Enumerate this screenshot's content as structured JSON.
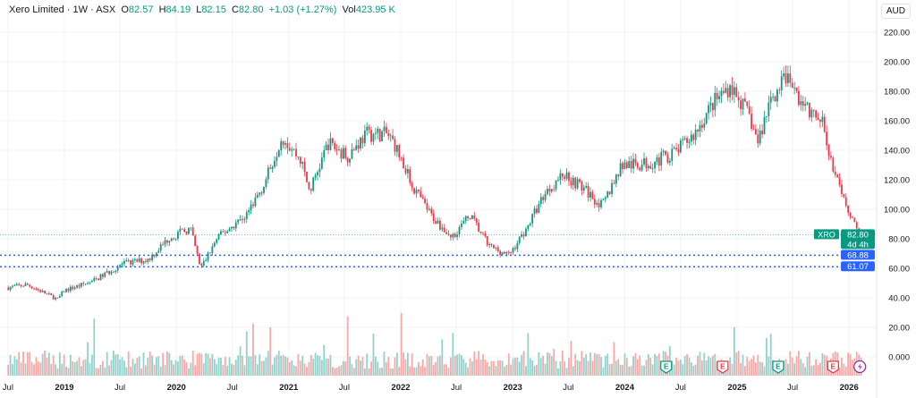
{
  "header": {
    "symbol": "Xero Limited",
    "interval": "1W",
    "exchange": "ASX",
    "open_label": "O",
    "open": "82.57",
    "high_label": "H",
    "high": "84.19",
    "low_label": "L",
    "low": "82.15",
    "close_label": "C",
    "close": "82.80",
    "change": "+1.03 (+1.27%)",
    "vol_label": "Vol",
    "volume": "423.95 K",
    "currency": "AUD"
  },
  "chart_data": {
    "type": "candlestick",
    "ylim": [
      0,
      220
    ],
    "y_ticks": [
      "0.000",
      "20.00",
      "40.00",
      "60.00",
      "80.00",
      "100.00",
      "120.00",
      "140.00",
      "160.00",
      "180.00",
      "200.00",
      "220.00"
    ],
    "x_ticks": [
      {
        "label": "Jul",
        "date": "2018-07-01",
        "bold": false
      },
      {
        "label": "2019",
        "date": "2019-01-01",
        "bold": true
      },
      {
        "label": "Jul",
        "date": "2019-07-01",
        "bold": false
      },
      {
        "label": "2020",
        "date": "2020-01-01",
        "bold": true
      },
      {
        "label": "Jul",
        "date": "2020-07-01",
        "bold": false
      },
      {
        "label": "2021",
        "date": "2021-01-01",
        "bold": true
      },
      {
        "label": "Jul",
        "date": "2021-07-01",
        "bold": false
      },
      {
        "label": "2022",
        "date": "2022-01-01",
        "bold": true
      },
      {
        "label": "Jul",
        "date": "2022-07-01",
        "bold": false
      },
      {
        "label": "2023",
        "date": "2023-01-01",
        "bold": true
      },
      {
        "label": "Jul",
        "date": "2023-07-01",
        "bold": false
      },
      {
        "label": "2024",
        "date": "2024-01-01",
        "bold": true
      },
      {
        "label": "Jul",
        "date": "2024-07-01",
        "bold": false
      },
      {
        "label": "2025",
        "date": "2025-01-01",
        "bold": true
      },
      {
        "label": "Jul",
        "date": "2025-07-01",
        "bold": false
      },
      {
        "label": "2026",
        "date": "2026-01-01",
        "bold": true
      }
    ],
    "approx_close": [
      [
        "2018-07-02",
        47
      ],
      [
        "2018-09-01",
        49
      ],
      [
        "2018-12-10",
        39
      ],
      [
        "2019-01-01",
        45
      ],
      [
        "2019-04-01",
        51
      ],
      [
        "2019-07-10",
        63
      ],
      [
        "2019-10-01",
        66
      ],
      [
        "2019-12-10",
        81
      ],
      [
        "2020-02-15",
        87
      ],
      [
        "2020-03-20",
        60
      ],
      [
        "2020-05-15",
        81
      ],
      [
        "2020-08-15",
        96
      ],
      [
        "2020-10-15",
        118
      ],
      [
        "2020-12-10",
        150
      ],
      [
        "2021-02-10",
        133
      ],
      [
        "2021-03-10",
        112
      ],
      [
        "2021-05-10",
        145
      ],
      [
        "2021-07-10",
        136
      ],
      [
        "2021-09-10",
        151
      ],
      [
        "2021-11-15",
        151
      ],
      [
        "2021-12-10",
        145
      ],
      [
        "2022-02-10",
        115
      ],
      [
        "2022-04-10",
        96
      ],
      [
        "2022-06-15",
        81
      ],
      [
        "2022-08-15",
        96
      ],
      [
        "2022-10-15",
        75
      ],
      [
        "2022-12-20",
        69
      ],
      [
        "2023-02-15",
        87
      ],
      [
        "2023-04-15",
        111
      ],
      [
        "2023-06-15",
        124
      ],
      [
        "2023-08-15",
        115
      ],
      [
        "2023-10-20",
        102
      ],
      [
        "2023-12-20",
        130
      ],
      [
        "2024-02-15",
        130
      ],
      [
        "2024-04-15",
        133
      ],
      [
        "2024-06-15",
        139
      ],
      [
        "2024-08-15",
        151
      ],
      [
        "2024-10-15",
        172
      ],
      [
        "2024-12-10",
        184
      ],
      [
        "2025-02-10",
        163
      ],
      [
        "2025-03-10",
        145
      ],
      [
        "2025-04-20",
        175
      ],
      [
        "2025-06-10",
        190
      ],
      [
        "2025-08-10",
        169
      ],
      [
        "2025-10-10",
        157
      ],
      [
        "2025-11-10",
        127
      ],
      [
        "2025-12-10",
        108
      ],
      [
        "2026-02-09",
        82.8
      ]
    ],
    "price_lines": [
      {
        "value": 82.8,
        "label": "82.80",
        "sub": "4d 4h",
        "tag": "XRO",
        "color": "#089981"
      },
      {
        "value": 68.88,
        "label": "68.88",
        "color": "#2962ff"
      },
      {
        "value": 61.07,
        "label": "61.07",
        "color": "#2962ff"
      }
    ],
    "events": [
      {
        "type": "E",
        "date": "2024-05-15",
        "color": "#089981"
      },
      {
        "type": "E",
        "date": "2024-11-15",
        "color": "#f23645"
      },
      {
        "type": "E",
        "date": "2025-05-15",
        "color": "#089981"
      },
      {
        "type": "E",
        "date": "2025-11-10",
        "color": "#f23645"
      },
      {
        "type": "dividend-flash",
        "date": "2026-02-05",
        "color": "#9c27b0"
      }
    ],
    "colors": {
      "up": "#089981",
      "down": "#f23645",
      "vol_up": "#92d2cc",
      "vol_down": "#f7a9a7"
    }
  }
}
